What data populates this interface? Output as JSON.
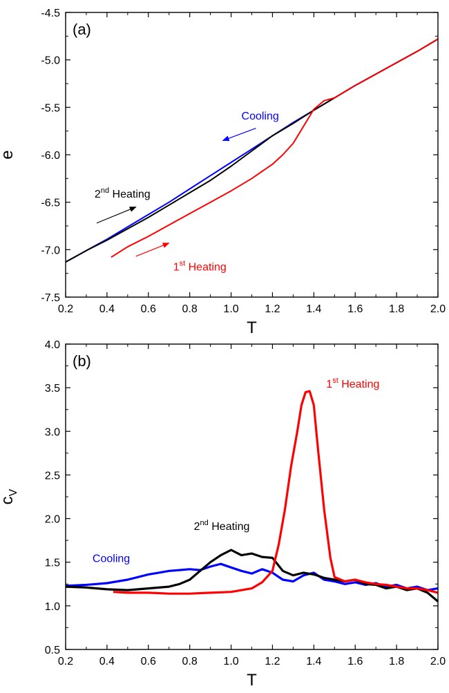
{
  "chart_data": [
    {
      "type": "line",
      "panel_label": "(a)",
      "xlabel": "T",
      "ylabel": "e",
      "xlim": [
        0.2,
        2.0
      ],
      "ylim": [
        -7.5,
        -4.5
      ],
      "xticks": [
        "0.2",
        "0.4",
        "0.6",
        "0.8",
        "1.0",
        "1.2",
        "1.4",
        "1.6",
        "1.8",
        "2.0"
      ],
      "yticks": [
        "-4.5",
        "-5.0",
        "-5.5",
        "-6.0",
        "-6.5",
        "-7.0",
        "-7.5"
      ],
      "grid": false,
      "series": [
        {
          "color": "#0000ff",
          "x": [
            0.2,
            0.3,
            0.4,
            0.5,
            0.6,
            0.7,
            0.8,
            0.9,
            1.0,
            1.1,
            1.2,
            1.3,
            1.4,
            1.5,
            1.6,
            1.7,
            1.8,
            1.9,
            2.0
          ],
          "y": [
            -7.13,
            -7.01,
            -6.89,
            -6.76,
            -6.63,
            -6.5,
            -6.36,
            -6.22,
            -6.08,
            -5.94,
            -5.8,
            -5.66,
            -5.53,
            -5.4,
            -5.27,
            -5.15,
            -5.03,
            -4.91,
            -4.78
          ]
        },
        {
          "color": "#000000",
          "x": [
            0.2,
            0.3,
            0.4,
            0.5,
            0.6,
            0.7,
            0.8,
            0.9,
            1.0,
            1.1,
            1.2,
            1.3,
            1.4,
            1.5,
            1.6,
            1.7,
            1.8,
            1.9,
            2.0
          ],
          "y": [
            -7.13,
            -7.01,
            -6.9,
            -6.78,
            -6.66,
            -6.53,
            -6.4,
            -6.27,
            -6.12,
            -5.96,
            -5.8,
            -5.67,
            -5.53,
            -5.4,
            -5.27,
            -5.15,
            -5.03,
            -4.91,
            -4.78
          ]
        },
        {
          "color": "#ff0000",
          "x": [
            0.42,
            0.5,
            0.6,
            0.7,
            0.8,
            0.9,
            1.0,
            1.1,
            1.2,
            1.25,
            1.3,
            1.35,
            1.4,
            1.45,
            1.5,
            1.6,
            1.7,
            1.8,
            1.9,
            2.0
          ],
          "y": [
            -7.08,
            -6.97,
            -6.86,
            -6.74,
            -6.62,
            -6.5,
            -6.38,
            -6.25,
            -6.1,
            -6.0,
            -5.88,
            -5.7,
            -5.52,
            -5.43,
            -5.4,
            -5.27,
            -5.15,
            -5.03,
            -4.91,
            -4.78
          ]
        }
      ],
      "annotations": [
        {
          "text": "Cooling",
          "sup": "",
          "rest": "",
          "color": "#0000ff",
          "x": 1.05,
          "y": -5.63,
          "arrow": [
            1.12,
            -5.72,
            0.96,
            -5.85
          ]
        },
        {
          "text": "2",
          "sup": "nd",
          "rest": " Heating",
          "color": "#000000",
          "x": 0.34,
          "y": -6.45,
          "arrow": [
            0.35,
            -6.72,
            0.54,
            -6.55
          ]
        },
        {
          "text": "1",
          "sup": "st",
          "rest": " Heating",
          "color": "#ff0000",
          "x": 0.72,
          "y": -7.22,
          "arrow": [
            0.54,
            -7.07,
            0.7,
            -6.93
          ]
        }
      ]
    },
    {
      "type": "line",
      "panel_label": "(b)",
      "xlabel": "T",
      "ylabel": "c",
      "ylabel_sub": "V",
      "xlim": [
        0.2,
        2.0
      ],
      "ylim": [
        0.5,
        4.0
      ],
      "xticks": [
        "0.2",
        "0.4",
        "0.6",
        "0.8",
        "1.0",
        "1.2",
        "1.4",
        "1.6",
        "1.8",
        "2.0"
      ],
      "yticks": [
        "0.5",
        "1.0",
        "1.5",
        "2.0",
        "2.5",
        "3.0",
        "3.5",
        "4.0"
      ],
      "grid": false,
      "series": [
        {
          "color": "#0000ff",
          "x": [
            0.2,
            0.3,
            0.4,
            0.5,
            0.6,
            0.65,
            0.7,
            0.75,
            0.8,
            0.85,
            0.9,
            0.95,
            1.0,
            1.05,
            1.1,
            1.15,
            1.2,
            1.25,
            1.3,
            1.35,
            1.4,
            1.45,
            1.5,
            1.55,
            1.6,
            1.65,
            1.7,
            1.75,
            1.8,
            1.85,
            1.9,
            1.95,
            2.0
          ],
          "y": [
            1.23,
            1.24,
            1.26,
            1.3,
            1.36,
            1.38,
            1.4,
            1.41,
            1.42,
            1.41,
            1.45,
            1.48,
            1.44,
            1.4,
            1.37,
            1.42,
            1.38,
            1.3,
            1.28,
            1.35,
            1.38,
            1.3,
            1.28,
            1.25,
            1.27,
            1.24,
            1.26,
            1.22,
            1.24,
            1.2,
            1.22,
            1.18,
            1.2
          ]
        },
        {
          "color": "#000000",
          "x": [
            0.2,
            0.3,
            0.4,
            0.5,
            0.6,
            0.7,
            0.75,
            0.8,
            0.85,
            0.9,
            0.95,
            1.0,
            1.05,
            1.1,
            1.15,
            1.2,
            1.25,
            1.3,
            1.35,
            1.4,
            1.45,
            1.5,
            1.55,
            1.6,
            1.65,
            1.7,
            1.75,
            1.8,
            1.85,
            1.9,
            1.95,
            2.0
          ],
          "y": [
            1.22,
            1.21,
            1.19,
            1.18,
            1.2,
            1.22,
            1.25,
            1.3,
            1.4,
            1.5,
            1.58,
            1.64,
            1.58,
            1.6,
            1.56,
            1.55,
            1.4,
            1.35,
            1.38,
            1.36,
            1.32,
            1.3,
            1.28,
            1.3,
            1.25,
            1.24,
            1.2,
            1.22,
            1.18,
            1.2,
            1.15,
            1.05
          ]
        },
        {
          "color": "#ff0000",
          "x": [
            0.43,
            0.5,
            0.6,
            0.7,
            0.8,
            0.9,
            1.0,
            1.1,
            1.15,
            1.2,
            1.23,
            1.26,
            1.29,
            1.32,
            1.34,
            1.36,
            1.38,
            1.4,
            1.42,
            1.45,
            1.48,
            1.5,
            1.55,
            1.6,
            1.65,
            1.7,
            1.75,
            1.8,
            1.85,
            1.9,
            1.95,
            2.0
          ],
          "y": [
            1.16,
            1.15,
            1.15,
            1.14,
            1.14,
            1.15,
            1.16,
            1.2,
            1.27,
            1.4,
            1.7,
            2.1,
            2.6,
            3.0,
            3.3,
            3.45,
            3.46,
            3.3,
            2.8,
            2.1,
            1.55,
            1.33,
            1.28,
            1.3,
            1.27,
            1.25,
            1.24,
            1.22,
            1.2,
            1.2,
            1.18,
            1.15
          ]
        }
      ],
      "annotations": [
        {
          "text": "Cooling",
          "sup": "",
          "rest": "",
          "color": "#0000ff",
          "x": 0.33,
          "y": 1.5
        },
        {
          "text": "2",
          "sup": "nd",
          "rest": " Heating",
          "color": "#000000",
          "x": 0.82,
          "y": 1.87
        },
        {
          "text": "1",
          "sup": "st",
          "rest": " Heating",
          "color": "#ff0000",
          "x": 1.46,
          "y": 3.5
        }
      ]
    }
  ]
}
